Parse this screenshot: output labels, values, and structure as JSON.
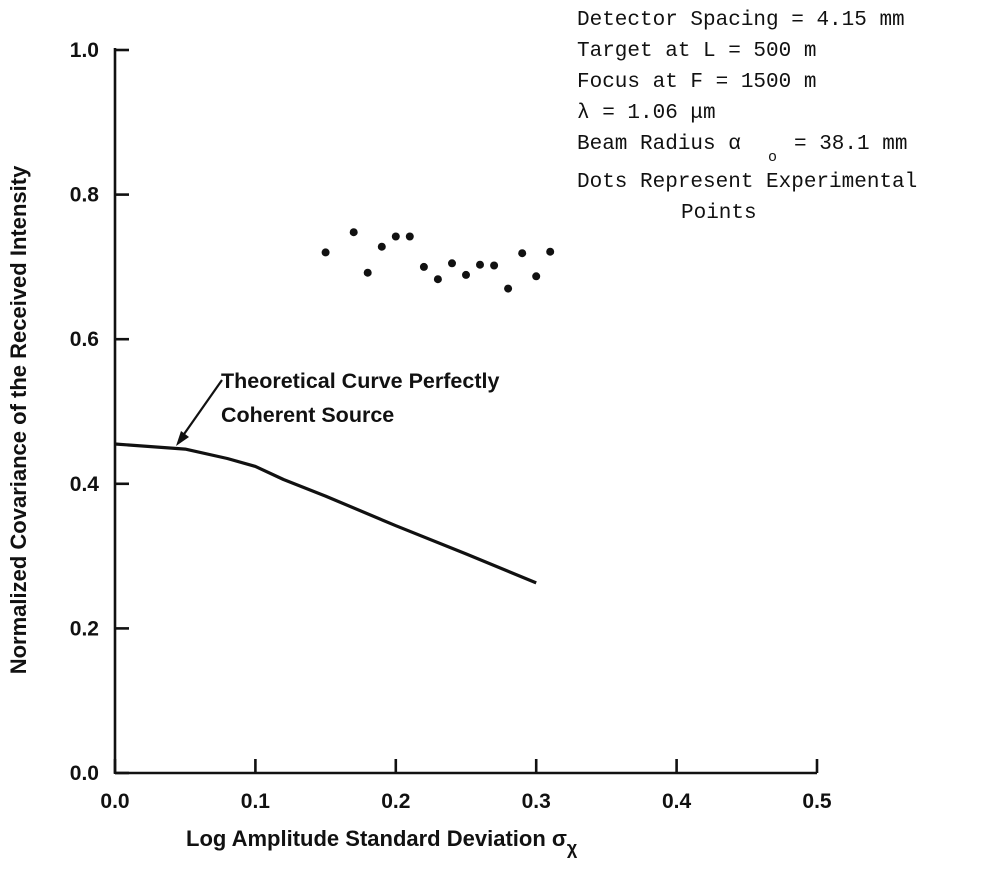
{
  "chart_data": {
    "type": "line",
    "title": "",
    "xlabel": "Log Amplitude Standard Deviation σ",
    "xlabel_subscript": "χ",
    "ylabel": "Normalized Covariance of the Received Intensity",
    "xlim": [
      0.0,
      0.5
    ],
    "ylim": [
      0.0,
      1.0
    ],
    "x_ticks": [
      "0.0",
      "0.1",
      "0.2",
      "0.3",
      "0.4",
      "0.5"
    ],
    "y_ticks": [
      "0.0",
      "0.2",
      "0.4",
      "0.6",
      "0.8",
      "1.0"
    ],
    "grid": false,
    "series": [
      {
        "name": "Theoretical Curve Perfectly Coherent Source",
        "style": "line",
        "x": [
          0.0,
          0.05,
          0.08,
          0.1,
          0.12,
          0.15,
          0.2,
          0.25,
          0.3
        ],
        "y": [
          0.455,
          0.448,
          0.435,
          0.424,
          0.406,
          0.383,
          0.342,
          0.303,
          0.263
        ]
      },
      {
        "name": "Experimental Points",
        "style": "scatter",
        "x": [
          0.15,
          0.17,
          0.18,
          0.19,
          0.2,
          0.21,
          0.22,
          0.23,
          0.24,
          0.25,
          0.26,
          0.27,
          0.28,
          0.29,
          0.3,
          0.31
        ],
        "y": [
          0.72,
          0.748,
          0.692,
          0.728,
          0.742,
          0.742,
          0.7,
          0.683,
          0.705,
          0.689,
          0.703,
          0.702,
          0.67,
          0.719,
          0.687,
          0.721
        ]
      }
    ],
    "annotation": {
      "line1": "Theoretical Curve Perfectly",
      "line2": "Coherent Source"
    },
    "parameters": {
      "line1": "Detector Spacing = 4.15 mm",
      "line2": "Target at L = 500 m",
      "line3": "Focus at F = 1500 m",
      "line4": "λ = 1.06 μm",
      "line5_pre": "Beam Radius α",
      "line5_sub": "o",
      "line5_post": "= 38.1 mm",
      "line6": "Dots Represent Experimental",
      "line7": "Points"
    }
  }
}
